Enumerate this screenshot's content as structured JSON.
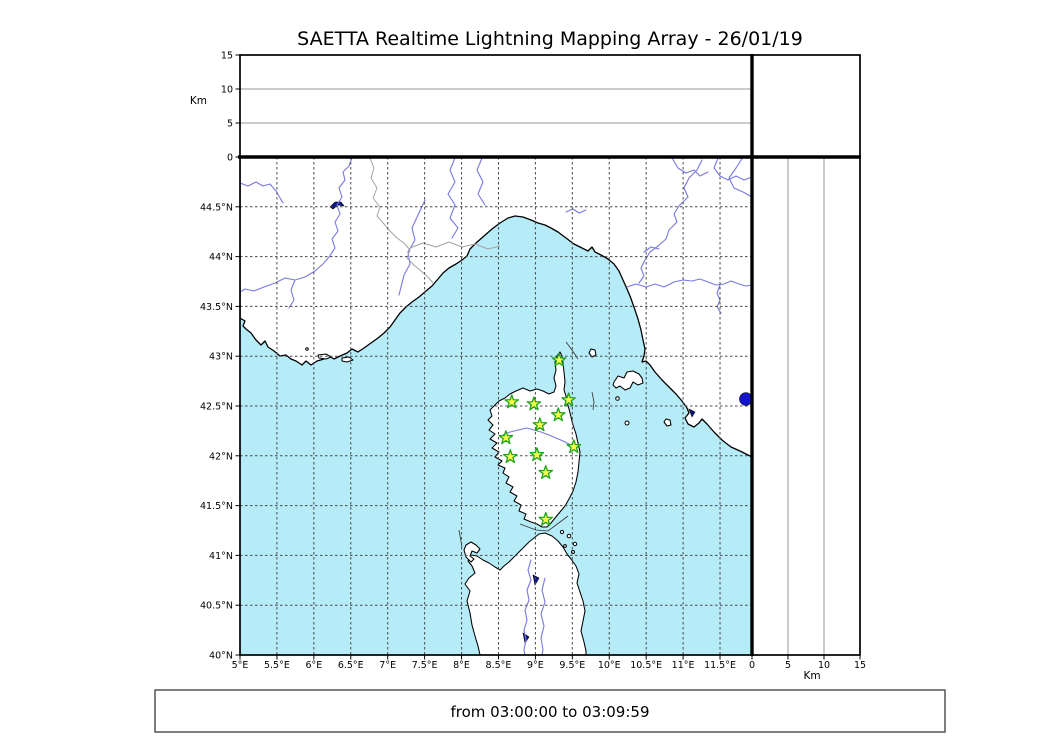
{
  "title": "SAETTA Realtime Lightning Mapping Array - 26/01/19",
  "status_bar": {
    "label": "from 03:00:00 to 03:09:59"
  },
  "altitude_panel_top": {
    "axis_label": "Km",
    "range_km": [
      0,
      15
    ],
    "ticks": [
      {
        "label": "0",
        "km": 0
      },
      {
        "label": "5",
        "km": 5
      },
      {
        "label": "10",
        "km": 10
      },
      {
        "label": "15",
        "km": 15
      }
    ]
  },
  "altitude_panel_right": {
    "axis_label": "Km",
    "range_km": [
      0,
      15
    ],
    "ticks": [
      {
        "label": "0",
        "km": 0
      },
      {
        "label": "5",
        "km": 5
      },
      {
        "label": "10",
        "km": 10
      },
      {
        "label": "15",
        "km": 15
      }
    ]
  },
  "map": {
    "lat_range": [
      40,
      45
    ],
    "lon_range": [
      5,
      11.93
    ],
    "lat_ticks": [
      {
        "label": "44.5°N",
        "lat": 44.5
      },
      {
        "label": "44°N",
        "lat": 44.0
      },
      {
        "label": "43.5°N",
        "lat": 43.5
      },
      {
        "label": "43°N",
        "lat": 43.0
      },
      {
        "label": "42.5°N",
        "lat": 42.5
      },
      {
        "label": "42°N",
        "lat": 42.0
      },
      {
        "label": "41.5°N",
        "lat": 41.5
      },
      {
        "label": "41°N",
        "lat": 41.0
      },
      {
        "label": "40.5°N",
        "lat": 40.5
      },
      {
        "label": "40°N",
        "lat": 40.0
      }
    ],
    "lon_ticks": [
      {
        "label": "5°E",
        "lon": 5.0
      },
      {
        "label": "5.5°E",
        "lon": 5.5
      },
      {
        "label": "6°E",
        "lon": 6.0
      },
      {
        "label": "6.5°E",
        "lon": 6.5
      },
      {
        "label": "7°E",
        "lon": 7.0
      },
      {
        "label": "7.5°E",
        "lon": 7.5
      },
      {
        "label": "8°E",
        "lon": 8.0
      },
      {
        "label": "8.5°E",
        "lon": 8.5
      },
      {
        "label": "9°E",
        "lon": 9.0
      },
      {
        "label": "9.5°E",
        "lon": 9.5
      },
      {
        "label": "10°E",
        "lon": 10.0
      },
      {
        "label": "10.5°E",
        "lon": 10.5
      },
      {
        "label": "11°E",
        "lon": 11.0
      },
      {
        "label": "11.5°E",
        "lon": 11.5
      }
    ],
    "stations": [
      {
        "lon": 9.32,
        "lat": 42.96
      },
      {
        "lon": 8.68,
        "lat": 42.54
      },
      {
        "lon": 8.98,
        "lat": 42.52
      },
      {
        "lon": 9.45,
        "lat": 42.56
      },
      {
        "lon": 9.31,
        "lat": 42.41
      },
      {
        "lon": 9.06,
        "lat": 42.31
      },
      {
        "lon": 8.6,
        "lat": 42.18
      },
      {
        "lon": 9.52,
        "lat": 42.09
      },
      {
        "lon": 9.02,
        "lat": 42.01
      },
      {
        "lon": 8.66,
        "lat": 41.99
      },
      {
        "lon": 9.14,
        "lat": 41.83
      },
      {
        "lon": 9.14,
        "lat": 41.36
      }
    ],
    "lightning_source": {
      "lon": 11.85,
      "lat": 42.57
    }
  },
  "colors": {
    "sea": "#b6ebf8",
    "land": "#ffffff",
    "coastline": "#000000",
    "river": "#7878e2",
    "admin_border": "#a3a3a3",
    "grid": "#484848",
    "station_fill": "#f7fb4a",
    "station_stroke": "#1ea41e",
    "source_dot": "#1414c8",
    "lake": "#0a1a8c"
  }
}
